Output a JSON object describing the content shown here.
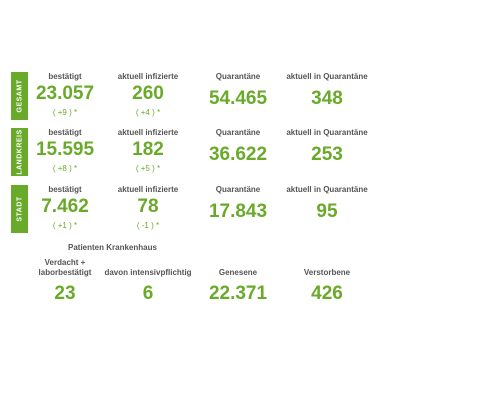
{
  "sections": [
    {
      "name": "GESAMT",
      "stats": [
        {
          "label": "bestätigt",
          "value": "23.057",
          "change": "( +9 ) *"
        },
        {
          "label": "aktuell infizierte",
          "value": "260",
          "change": "( +4 ) *"
        },
        {
          "label": "Quarantäne",
          "value": "54.465"
        },
        {
          "label": "aktuell in Quarantäne",
          "value": "348"
        }
      ]
    },
    {
      "name": "LANDKREIS",
      "stats": [
        {
          "label": "bestätigt",
          "value": "15.595",
          "change": "( +8 ) *"
        },
        {
          "label": "aktuell infizierte",
          "value": "182",
          "change": "( +5 ) *"
        },
        {
          "label": "Quarantäne",
          "value": "36.622"
        },
        {
          "label": "aktuell in Quarantäne",
          "value": "253"
        }
      ]
    },
    {
      "name": "STADT",
      "stats": [
        {
          "label": "bestätigt",
          "value": "7.462",
          "change": "( +1 ) *"
        },
        {
          "label": "aktuell infizierte",
          "value": "78",
          "change": "( -1 ) *"
        },
        {
          "label": "Quarantäne",
          "value": "17.843"
        },
        {
          "label": "aktuell in Quarantäne",
          "value": "95"
        }
      ]
    }
  ],
  "hospital": {
    "title": "Patienten Krankenhaus",
    "stats": [
      {
        "label": [
          "Verdacht +",
          "laborbestätigt"
        ],
        "value": "23"
      },
      {
        "label": [
          "davon intensivpflichtig"
        ],
        "value": "6"
      },
      {
        "label": [
          "Genesene"
        ],
        "value": "22.371"
      },
      {
        "label": [
          "Verstorbene"
        ],
        "value": "426"
      }
    ]
  }
}
